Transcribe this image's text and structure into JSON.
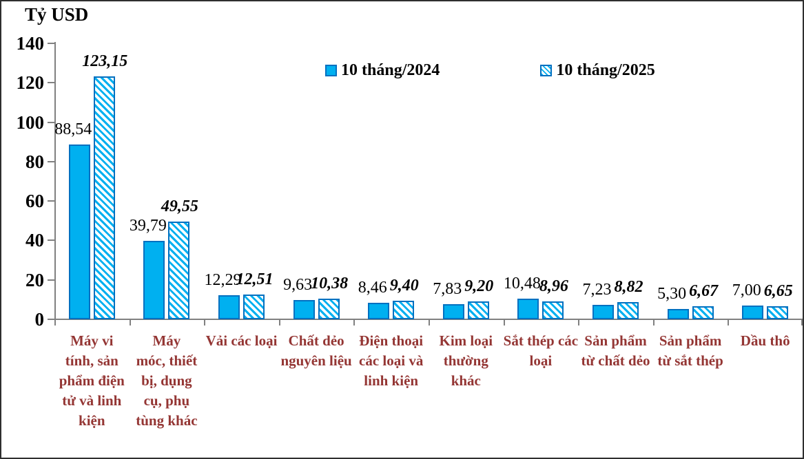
{
  "title": "Tỷ USD",
  "colors": {
    "bar_fill": "#00b0f0",
    "bar_border": "#0070c0",
    "axis_line": "#808080",
    "category_text": "#943634",
    "value_text": "#000000"
  },
  "legend": {
    "swatch_2024": "solid-blue-square",
    "swatch_2025": "hatched-blue-square"
  },
  "chart_data": {
    "type": "bar",
    "title": "Tỷ USD",
    "xlabel": "",
    "ylabel": "Tỷ USD",
    "ylim": [
      0,
      140
    ],
    "yticks": [
      0,
      20,
      40,
      60,
      80,
      100,
      120,
      140
    ],
    "grid": false,
    "legend_position": "top-center",
    "categories": [
      "Máy vi tính, sản phẩm điện tử và linh kiện",
      "Máy móc, thiết bị, dụng cụ, phụ tùng khác",
      "Vải các loại",
      "Chất dẻo nguyên liệu",
      "Điện thoại các loại và linh kiện",
      "Kim loại thường khác",
      "Sắt thép các loại",
      "Sản phẩm từ chất dẻo",
      "Sản phẩm từ sắt thép",
      "Dầu thô"
    ],
    "categories_display": [
      "Máy vi\ntính, sản\nphẩm điện\ntử và linh\nkiện",
      "Máy\nmóc, thiết\nbị, dụng\ncụ, phụ\ntùng khác",
      "Vải các loại",
      "Chất dẻo\nnguyên liệu",
      "Điện thoại\ncác loại và\nlinh kiện",
      "Kim loại\nthường\nkhác",
      "Sắt thép các\nloại",
      "Sản phẩm\ntừ chất dẻo",
      "Sản phẩm\ntừ sắt thép",
      "Dầu thô"
    ],
    "series": [
      {
        "name": "10 tháng/2024",
        "style": "solid",
        "values": [
          88.54,
          39.79,
          12.29,
          9.63,
          8.46,
          7.83,
          10.48,
          7.23,
          5.3,
          7.0
        ],
        "labels": [
          "88,54",
          "39,79",
          "12,29",
          "9,63",
          "8,46",
          "7,83",
          "10,48",
          "7,23",
          "5,30",
          "7,00"
        ]
      },
      {
        "name": "10 tháng/2025",
        "style": "hatched",
        "values": [
          123.15,
          49.55,
          12.51,
          10.38,
          9.4,
          9.2,
          8.96,
          8.82,
          6.67,
          6.65
        ],
        "labels": [
          "123,15",
          "49,55",
          "12,51",
          "10,38",
          "9,40",
          "9,20",
          "8,96",
          "8,82",
          "6,67",
          "6,65"
        ]
      }
    ]
  }
}
